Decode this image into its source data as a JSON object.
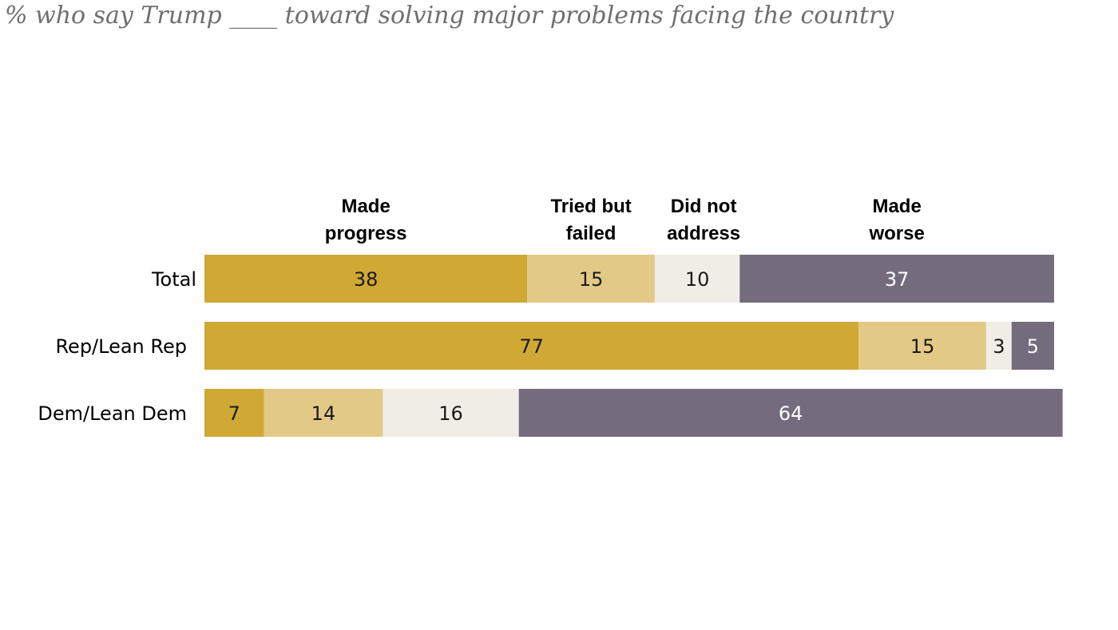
{
  "subtitle": "% who say Trump ____ toward solving major problems facing the country",
  "chart_data": {
    "type": "bar",
    "orientation": "horizontal",
    "stacked": true,
    "categories": [
      "Total",
      "Rep/Lean Rep",
      "Dem/Lean Dem"
    ],
    "series": [
      {
        "name": "Made progress",
        "values": [
          38,
          77,
          7
        ],
        "color": "#d0a935",
        "label_color": "#1a1a1a"
      },
      {
        "name": "Tried but failed",
        "values": [
          15,
          15,
          14
        ],
        "color": "#e2c985",
        "label_color": "#1a1a1a"
      },
      {
        "name": "Did not address",
        "values": [
          10,
          3,
          16
        ],
        "color": "#efede5",
        "label_color": "#1a1a1a"
      },
      {
        "name": "Made worse",
        "values": [
          37,
          5,
          64
        ],
        "color": "#746b7d",
        "label_color": "#ffffff"
      }
    ],
    "xlim": [
      0,
      100
    ],
    "grid": false,
    "legend_position": "top"
  }
}
